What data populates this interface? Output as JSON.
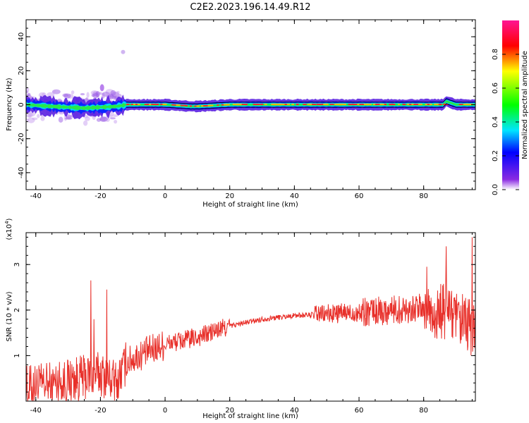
{
  "figure_title": "C2E2.2023.196.14.49.R12",
  "chart_data": [
    {
      "type": "heatmap",
      "title": "",
      "xlabel": "Height of straight line (km)",
      "ylabel": "Frequency (Hz)",
      "xlim": [
        -43,
        96
      ],
      "ylim": [
        -50,
        50
      ],
      "x_ticks": [
        "-40",
        "-20",
        "0",
        "20",
        "40",
        "60",
        "80"
      ],
      "y_ticks": [
        "-40",
        "-20",
        "0",
        "20",
        "40"
      ],
      "colorbar": {
        "label": "Normalized spectral amplitude",
        "range": [
          0,
          1
        ],
        "ticks": [
          "0.0",
          "0.2",
          "0.4",
          "0.6",
          "0.8"
        ],
        "colormap": [
          "#ffffff",
          "#8a2be2",
          "#0000ff",
          "#00e5ff",
          "#00ff00",
          "#ffff00",
          "#ff0000",
          "#ff1493"
        ]
      },
      "ridge": {
        "x": [
          -43,
          -35,
          -25,
          -15,
          -12,
          0,
          8,
          10,
          20,
          40,
          47,
          60,
          80,
          86,
          87,
          90,
          96
        ],
        "y": [
          0,
          -1,
          -2,
          -1,
          0,
          0,
          -1,
          -1,
          0,
          0,
          0,
          0,
          0,
          0,
          2,
          0,
          0
        ]
      },
      "grid": false
    },
    {
      "type": "line",
      "title": "",
      "xlabel": "Height of straight line (km)",
      "ylabel": "SNR (10 * v/v)",
      "y_multiplier": "(x10^4)",
      "xlim": [
        -43,
        96
      ],
      "ylim": [
        0,
        37000
      ],
      "x_ticks": [
        "-40",
        "-20",
        "0",
        "20",
        "40",
        "60",
        "80"
      ],
      "y_ticks": [
        "1",
        "2",
        "3"
      ],
      "color": "#e8302a",
      "trend": {
        "x": [
          -43,
          -30,
          -20,
          -15,
          -12,
          -5,
          0,
          10,
          20,
          30,
          40,
          47,
          60,
          70,
          80,
          85,
          88,
          90,
          95
        ],
        "y": [
          3000,
          4500,
          6000,
          4000,
          8500,
          11000,
          12500,
          14000,
          16500,
          18000,
          18800,
          19000,
          19500,
          20000,
          20500,
          19000,
          21000,
          17000,
          16000
        ]
      },
      "spikes": [
        {
          "x": -23,
          "y": 26500
        },
        {
          "x": -18,
          "y": 24500
        },
        {
          "x": -22,
          "y": 18000
        },
        {
          "x": 87,
          "y": 34000
        },
        {
          "x": 95,
          "y": 36000
        },
        {
          "x": 81,
          "y": 29500
        }
      ]
    }
  ]
}
